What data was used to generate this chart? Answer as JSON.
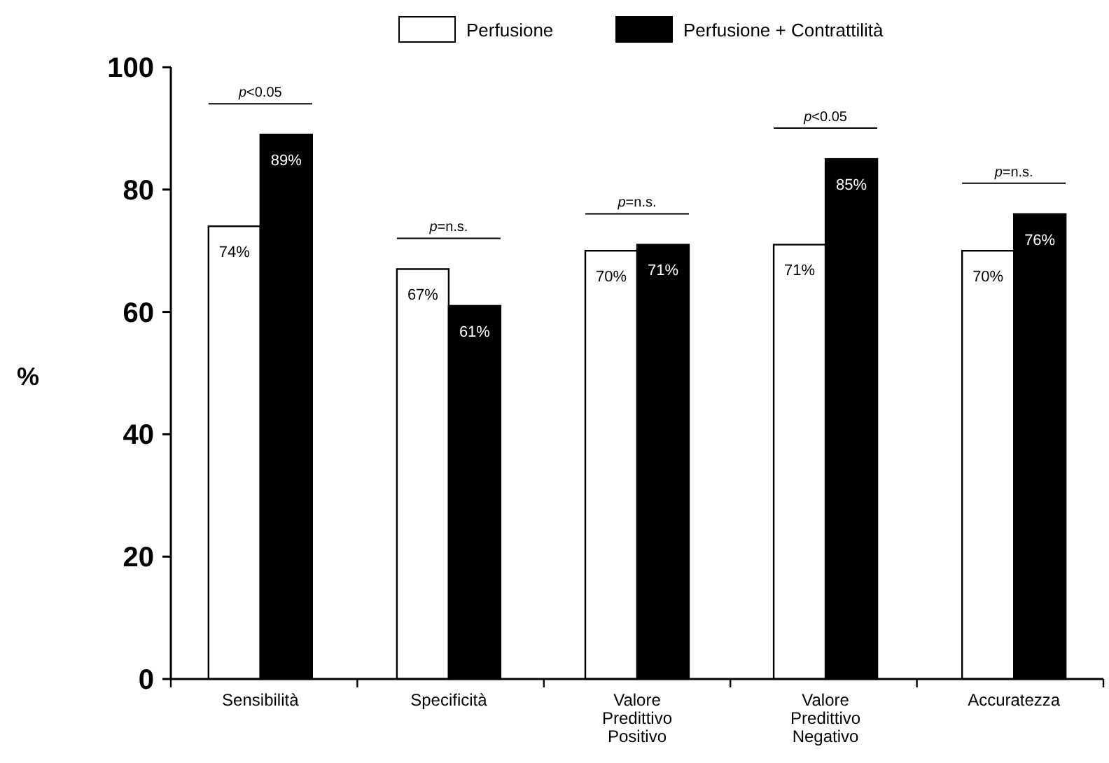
{
  "chart_data": {
    "type": "bar",
    "ylabel": "%",
    "categories": [
      "Sensibilità",
      "Specificità",
      "Valore Predittivo Positivo",
      "Valore Predittivo Negativo",
      "Accuratezza"
    ],
    "series": [
      {
        "name": "Perfusione",
        "color": "#ffffff",
        "values": [
          74,
          67,
          70,
          71,
          70
        ],
        "value_labels": [
          "74%",
          "67%",
          "70%",
          "71%",
          "70%"
        ]
      },
      {
        "name": "Perfusione + Contrattilità",
        "color": "#000000",
        "values": [
          89,
          61,
          71,
          85,
          76
        ],
        "value_labels": [
          "89%",
          "61%",
          "71%",
          "85%",
          "76%"
        ]
      }
    ],
    "ylim": [
      0,
      100
    ],
    "yticks": [
      0,
      20,
      40,
      60,
      80,
      100
    ],
    "grid": false,
    "legend": "top",
    "annotations": [
      "p<0.05",
      "p=n.s.",
      "p=n.s.",
      "p<0.05",
      "p=n.s."
    ]
  }
}
